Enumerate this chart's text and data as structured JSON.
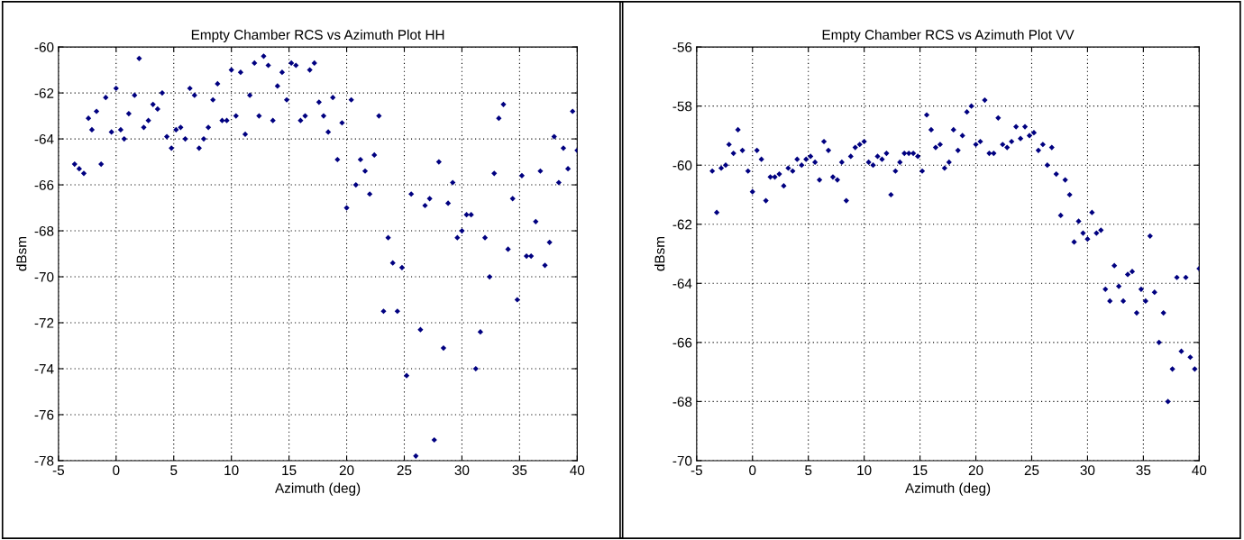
{
  "chart_data": [
    {
      "type": "scatter",
      "title": "Empty Chamber RCS vs Azimuth Plot HH",
      "xlabel": "Azimuth (deg)",
      "ylabel": "dBsm",
      "xlim": [
        -5,
        40
      ],
      "xticks": [
        -5,
        0,
        5,
        10,
        15,
        20,
        25,
        30,
        35,
        40
      ],
      "ylim": [
        -78,
        -60
      ],
      "yticks": [
        -78,
        -76,
        -74,
        -72,
        -70,
        -68,
        -66,
        -64,
        -62,
        -60
      ],
      "grid": true,
      "marker": "diamond",
      "series": [
        {
          "color": "#000080",
          "x": [
            -3.6,
            -3.2,
            -2.8,
            -2.4,
            -2.1,
            -1.7,
            -1.3,
            -0.9,
            -0.4,
            0,
            0.4,
            0.7,
            1.1,
            1.6,
            2,
            2.4,
            2.8,
            3.2,
            3.6,
            4,
            4.4,
            4.8,
            5.2,
            5.6,
            6,
            6.4,
            6.8,
            7.2,
            7.6,
            8,
            8.4,
            8.8,
            9.2,
            9.6,
            10,
            10.4,
            10.8,
            11.2,
            11.6,
            12,
            12.4,
            12.8,
            13.2,
            13.6,
            14,
            14.4,
            14.8,
            15.2,
            15.6,
            16,
            16.4,
            16.8,
            17.2,
            17.6,
            18,
            18.4,
            18.8,
            19.2,
            19.6,
            20,
            20.4,
            20.8,
            21.2,
            21.6,
            22,
            22.4,
            22.8,
            23.2,
            23.6,
            24,
            24.4,
            24.8,
            25.2,
            25.6,
            26,
            26.4,
            26.8,
            27.2,
            27.6,
            28,
            28.4,
            28.8,
            29.2,
            29.6,
            30,
            30.4,
            30.8,
            31.2,
            31.6,
            32,
            32.4,
            32.8,
            33.2,
            33.6,
            34,
            34.4,
            34.8,
            35.2,
            35.6,
            36,
            36.4,
            36.8,
            37.2,
            37.6,
            38,
            38.4,
            38.8,
            39.2,
            39.6,
            40
          ],
          "values": [
            -65.1,
            -65.3,
            -65.5,
            -63.1,
            -63.6,
            -62.8,
            -65.1,
            -62.2,
            -63.7,
            -61.8,
            -63.6,
            -64.0,
            -62.9,
            -62.1,
            -60.5,
            -63.5,
            -63.2,
            -62.5,
            -62.7,
            -62.0,
            -63.9,
            -64.4,
            -63.6,
            -63.5,
            -64.0,
            -61.8,
            -62.1,
            -64.4,
            -64.0,
            -63.5,
            -62.3,
            -61.6,
            -63.2,
            -63.2,
            -61.0,
            -63.0,
            -61.1,
            -63.8,
            -62.1,
            -60.7,
            -63.0,
            -60.4,
            -60.8,
            -63.2,
            -61.7,
            -61.1,
            -62.3,
            -60.7,
            -60.8,
            -63.2,
            -63.0,
            -61.0,
            -60.7,
            -62.4,
            -63.0,
            -63.7,
            -62.2,
            -64.9,
            -63.3,
            -67.0,
            -62.3,
            -66.0,
            -64.9,
            -65.4,
            -66.4,
            -64.7,
            -63.0,
            -71.5,
            -68.3,
            -69.4,
            -71.5,
            -69.6,
            -74.3,
            -66.4,
            -77.8,
            -72.3,
            -66.9,
            -66.6,
            -77.1,
            -65.0,
            -73.1,
            -66.8,
            -65.9,
            -68.3,
            -68.0,
            -67.3,
            -67.3,
            -74.0,
            -72.4,
            -68.3,
            -70.0,
            -65.5,
            -63.1,
            -62.5,
            -68.8,
            -66.6,
            -71.0,
            -65.6,
            -69.1,
            -69.1,
            -67.6,
            -65.4,
            -69.5,
            -68.5,
            -63.9,
            -65.9,
            -64.4,
            -65.3,
            -62.8,
            -64.5
          ]
        }
      ]
    },
    {
      "type": "scatter",
      "title": "Empty Chamber RCS vs Azimuth Plot VV",
      "xlabel": "Azimuth (deg)",
      "ylabel": "dBsm",
      "xlim": [
        -5,
        40
      ],
      "xticks": [
        -5,
        0,
        5,
        10,
        15,
        20,
        25,
        30,
        35,
        40
      ],
      "ylim": [
        -70,
        -56
      ],
      "yticks": [
        -70,
        -68,
        -66,
        -64,
        -62,
        -60,
        -58,
        -56
      ],
      "grid": true,
      "marker": "diamond",
      "series": [
        {
          "color": "#000080",
          "x": [
            -3.6,
            -3.2,
            -2.8,
            -2.4,
            -2.1,
            -1.7,
            -1.3,
            -0.9,
            -0.4,
            0,
            0.4,
            0.8,
            1.2,
            1.6,
            2,
            2.4,
            2.8,
            3.2,
            3.6,
            4,
            4.4,
            4.8,
            5.2,
            5.6,
            6,
            6.4,
            6.8,
            7.2,
            7.6,
            8,
            8.4,
            8.8,
            9.2,
            9.6,
            10,
            10.4,
            10.8,
            11.2,
            11.6,
            12,
            12.4,
            12.8,
            13.2,
            13.6,
            14,
            14.4,
            14.8,
            15.2,
            15.6,
            16,
            16.4,
            16.8,
            17.2,
            17.6,
            18,
            18.4,
            18.8,
            19.2,
            19.6,
            20,
            20.4,
            20.8,
            21.2,
            21.6,
            22,
            22.4,
            22.8,
            23.2,
            23.6,
            24,
            24.4,
            24.8,
            25.2,
            25.6,
            26,
            26.4,
            26.8,
            27.2,
            27.6,
            28,
            28.4,
            28.8,
            29.2,
            29.6,
            30,
            30.4,
            30.8,
            31.2,
            31.6,
            32,
            32.4,
            32.8,
            33.2,
            33.6,
            34,
            34.4,
            34.8,
            35.2,
            35.6,
            36,
            36.4,
            36.8,
            37.2,
            37.6,
            38,
            38.4,
            38.8,
            39.2,
            39.6,
            40
          ],
          "values": [
            -60.2,
            -61.6,
            -60.1,
            -60.0,
            -59.3,
            -59.6,
            -58.8,
            -59.5,
            -60.2,
            -60.9,
            -59.5,
            -59.8,
            -61.2,
            -60.4,
            -60.4,
            -60.3,
            -60.7,
            -60.1,
            -60.2,
            -59.8,
            -60.0,
            -59.8,
            -59.7,
            -59.9,
            -60.5,
            -59.2,
            -59.5,
            -60.4,
            -60.5,
            -59.9,
            -61.2,
            -59.7,
            -59.4,
            -59.3,
            -59.2,
            -59.9,
            -60.0,
            -59.7,
            -59.8,
            -59.6,
            -61.0,
            -60.2,
            -59.9,
            -59.6,
            -59.6,
            -59.6,
            -59.7,
            -60.2,
            -58.3,
            -58.8,
            -59.4,
            -59.3,
            -60.1,
            -59.9,
            -58.8,
            -59.5,
            -59.0,
            -58.2,
            -58.0,
            -59.3,
            -59.2,
            -57.8,
            -59.6,
            -59.6,
            -58.4,
            -59.3,
            -59.4,
            -59.2,
            -58.7,
            -59.1,
            -58.7,
            -59.0,
            -58.9,
            -59.5,
            -59.3,
            -60.0,
            -59.4,
            -60.3,
            -61.7,
            -60.5,
            -61.0,
            -62.6,
            -61.9,
            -62.3,
            -62.5,
            -61.6,
            -62.3,
            -62.2,
            -64.2,
            -64.6,
            -63.4,
            -64.1,
            -64.6,
            -63.7,
            -63.6,
            -65.0,
            -64.2,
            -64.6,
            -62.4,
            -64.3,
            -66.0,
            -65.0,
            -68.0,
            -66.9,
            -63.8,
            -66.3,
            -63.8,
            -66.5,
            -66.9,
            -63.5
          ]
        }
      ]
    }
  ]
}
